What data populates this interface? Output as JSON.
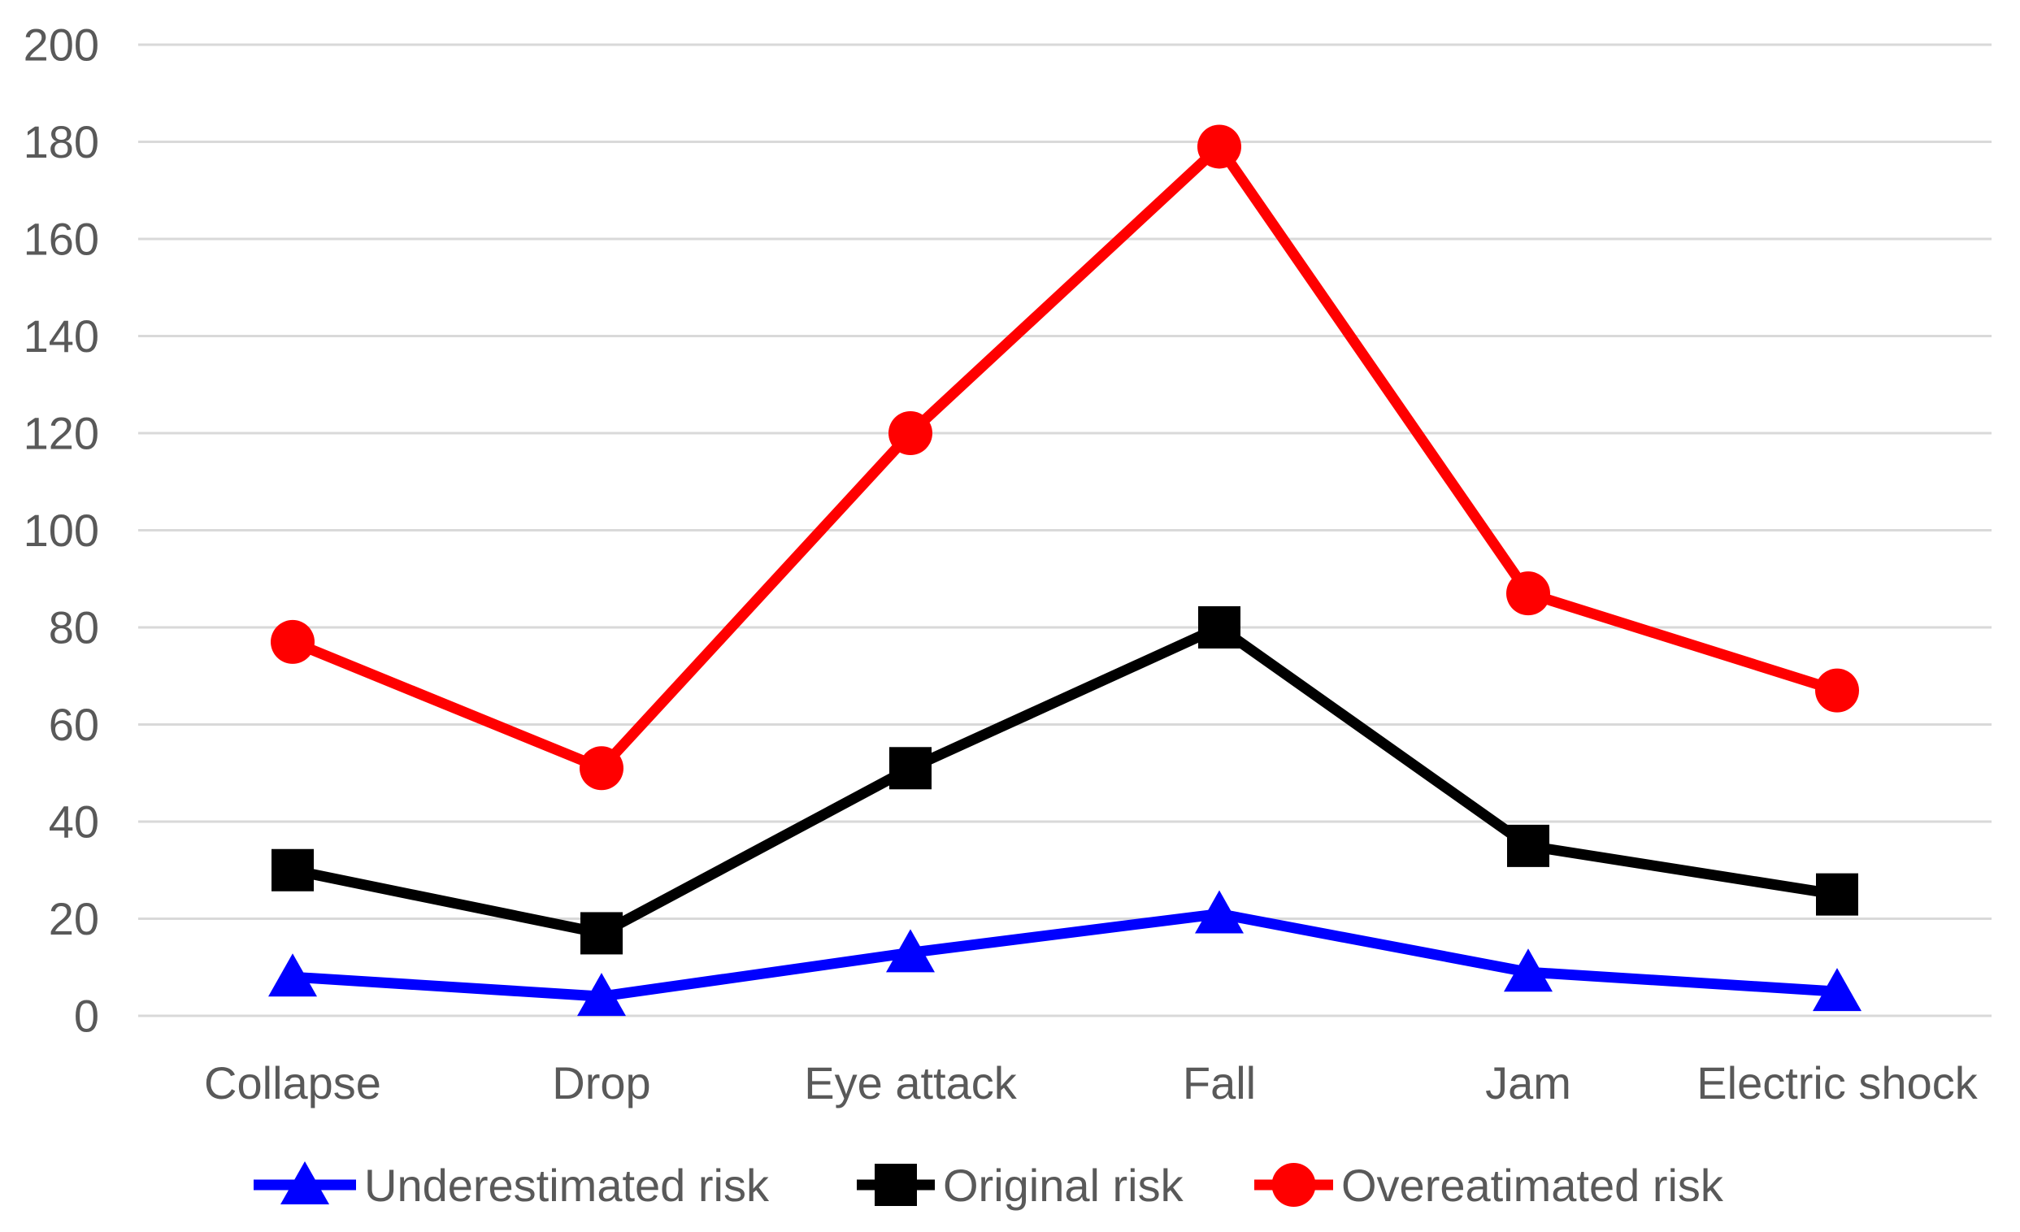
{
  "chart_data": {
    "type": "line",
    "title": "",
    "xlabel": "",
    "ylabel": "",
    "categories": [
      "Collapse",
      "Drop",
      "Eye attack",
      "Fall",
      "Jam",
      "Electric shock"
    ],
    "series": [
      {
        "name": "Underestimated risk",
        "color": "#0000ff",
        "marker": "triangle",
        "values": [
          8,
          4,
          13,
          21,
          9,
          5
        ]
      },
      {
        "name": "Original risk",
        "color": "#000000",
        "marker": "square",
        "values": [
          30,
          17,
          51,
          80,
          35,
          25
        ]
      },
      {
        "name": "Overeatimated risk",
        "color": "#ff0000",
        "marker": "circle",
        "values": [
          77,
          51,
          120,
          179,
          87,
          67
        ]
      }
    ],
    "ylim": [
      0,
      200
    ],
    "yticks": [
      0,
      20,
      40,
      60,
      80,
      100,
      120,
      140,
      160,
      180,
      200
    ],
    "grid": "horizontal-only",
    "gridline_color": "#d9d9d9",
    "axis_label_color": "#595959",
    "legend_position": "bottom",
    "background_color": "#ffffff"
  }
}
